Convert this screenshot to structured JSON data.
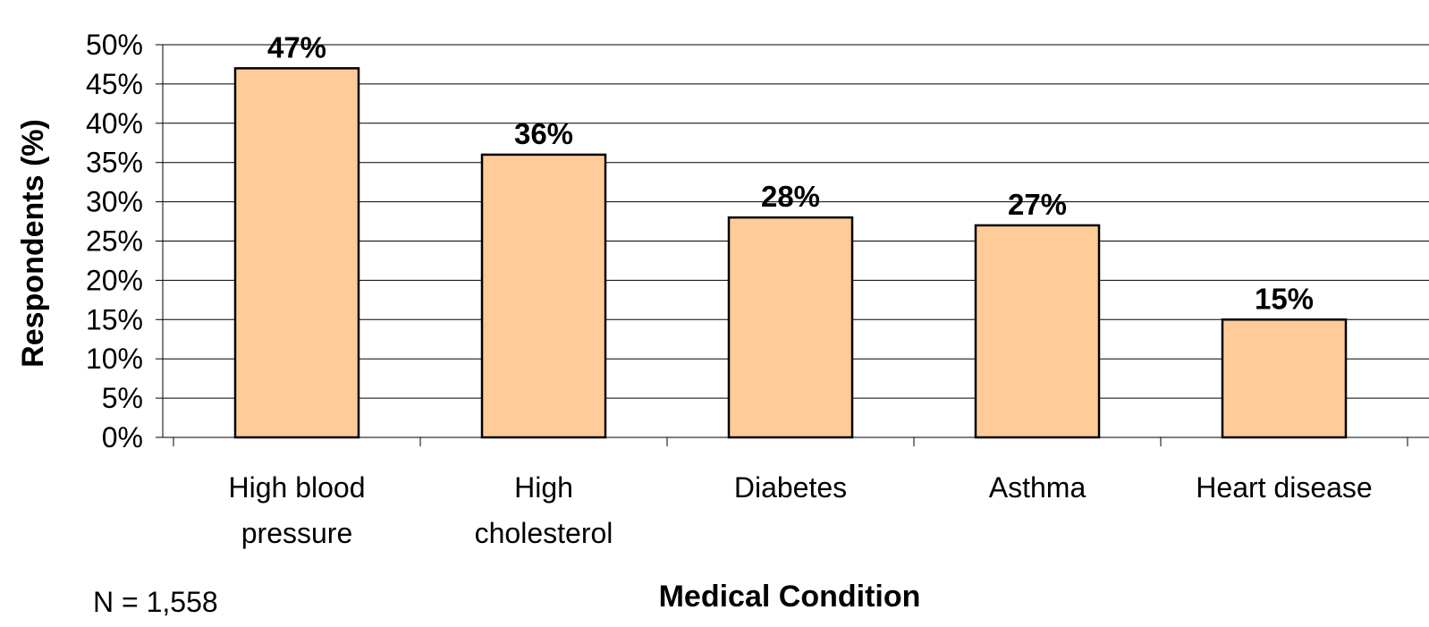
{
  "chart_data": {
    "type": "bar",
    "categories": [
      "High blood pressure",
      "High cholesterol",
      "Diabetes",
      "Asthma",
      "Heart disease"
    ],
    "category_lines": [
      [
        "High blood",
        "pressure"
      ],
      [
        "High",
        "cholesterol"
      ],
      [
        "Diabetes"
      ],
      [
        "Asthma"
      ],
      [
        "Heart disease"
      ]
    ],
    "values": [
      47,
      36,
      28,
      27,
      15
    ],
    "data_labels": [
      "47%",
      "36%",
      "28%",
      "27%",
      "15%"
    ],
    "title": "",
    "xlabel": "Medical Condition",
    "ylabel": "Respondents (%)",
    "ylim": [
      0,
      50
    ],
    "yticks": [
      0,
      5,
      10,
      15,
      20,
      25,
      30,
      35,
      40,
      45,
      50
    ],
    "ytick_labels": [
      "0%",
      "5%",
      "10%",
      "15%",
      "20%",
      "25%",
      "30%",
      "35%",
      "40%",
      "45%",
      "50%"
    ],
    "grid": true,
    "legend": "none",
    "colors": {
      "bar_fill": "#FFCC99",
      "bar_stroke": "#000000",
      "grid": "#000000"
    }
  },
  "footnote": "N = 1,558"
}
